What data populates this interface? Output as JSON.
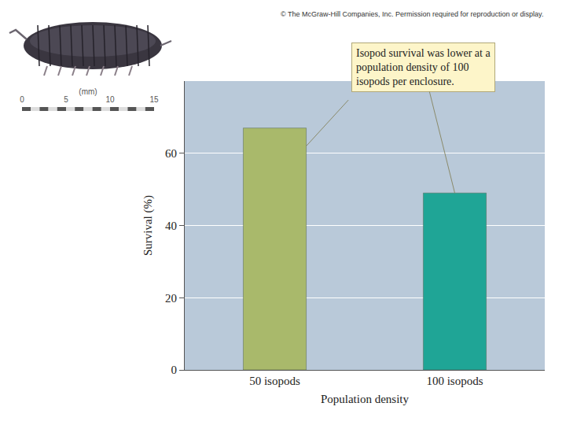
{
  "chart_data": {
    "type": "bar",
    "categories": [
      "50 isopods",
      "100 isopods"
    ],
    "values": [
      67,
      49
    ],
    "colors": [
      "#a9b96b",
      "#1fa596"
    ],
    "x_label": "Population density",
    "y_label": "Survival (%)",
    "ylim": [
      0,
      80
    ],
    "yticks": [
      0,
      20,
      40,
      60
    ],
    "grid": true,
    "annotation": "Isopod survival was lower at a population density of 100 isopods per enclosure.",
    "credit": "© The McGraw-Hill Companies, Inc. Permission required for reproduction or display."
  },
  "inset": {
    "scale_unit": "(mm)",
    "scale_ticks": [
      0,
      5,
      10,
      15
    ]
  }
}
